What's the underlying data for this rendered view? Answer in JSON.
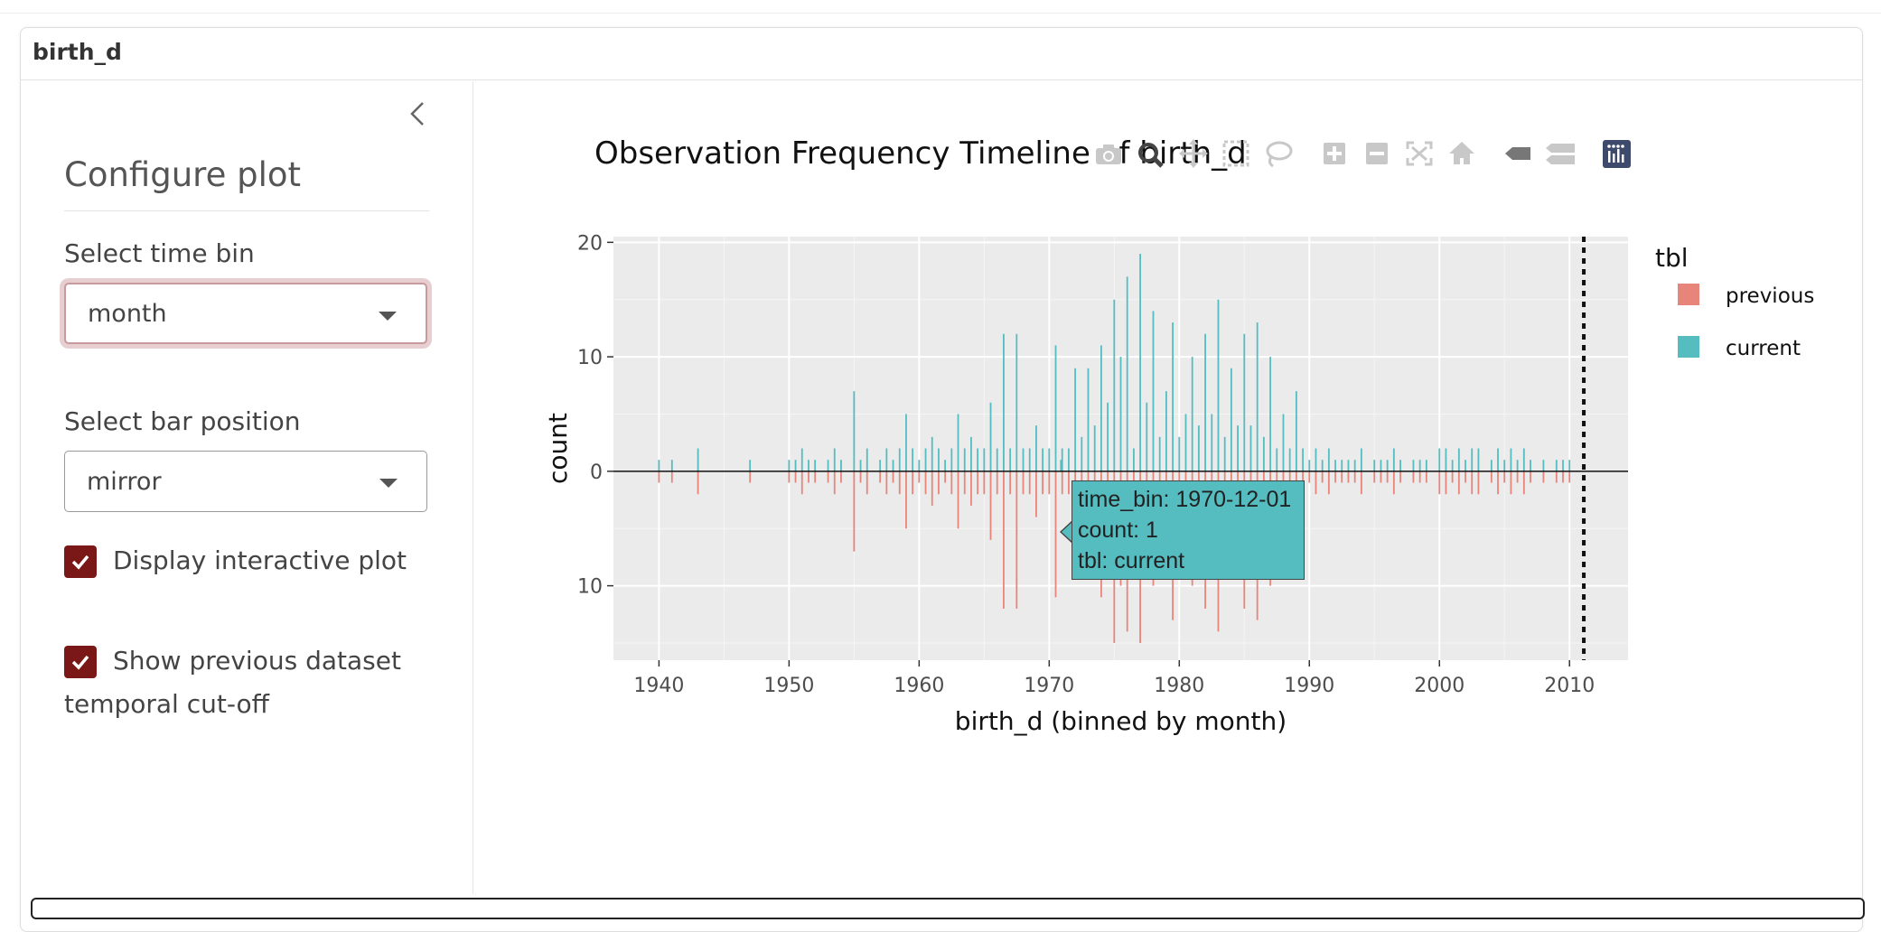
{
  "panel": {
    "title": "birth_d"
  },
  "sidebar": {
    "title": "Configure plot",
    "collapse_icon": "chevron-left-icon",
    "time_bin": {
      "label": "Select time bin",
      "value": "month"
    },
    "bar_position": {
      "label": "Select bar position",
      "value": "mirror"
    },
    "interactive": {
      "label": "Display interactive plot",
      "checked": true
    },
    "cutoff": {
      "label_line1": "Show previous dataset",
      "label_line2": "temporal cut-off",
      "checked": true
    },
    "accent_color": "#7a1717"
  },
  "modebar": {
    "icons": [
      "camera-icon",
      "zoom-icon",
      "pan-icon",
      "box-select-icon",
      "lasso-select-icon",
      "zoom-in-icon",
      "zoom-out-icon",
      "autoscale-icon",
      "reset-axes-icon",
      "spike-lines-icon",
      "compare-hover-icon",
      "plotly-logo-icon"
    ]
  },
  "tooltip": {
    "line1": "time_bin: 1970-12-01",
    "line2": "count:  1",
    "line3": "tbl: current"
  },
  "chart_data": {
    "type": "bar",
    "title": "Observation Frequency Timeline of birth_d",
    "xlabel": "birth_d (binned by month)",
    "ylabel": "count",
    "xlim": [
      1936.5,
      2014.5
    ],
    "ylim": [
      -16.5,
      20.5
    ],
    "x_ticks": [
      "1940",
      "1950",
      "1960",
      "1970",
      "1980",
      "1990",
      "2000",
      "2010"
    ],
    "y_ticks": [
      {
        "value": 20,
        "label": "20"
      },
      {
        "value": 10,
        "label": "10"
      },
      {
        "value": 0,
        "label": "0"
      },
      {
        "value": -10,
        "label": "10"
      }
    ],
    "cutoff_x": 2011.1,
    "legend": {
      "title": "tbl",
      "placement": "right"
    },
    "series": [
      {
        "name": "current",
        "color": "#55bcc0",
        "direction": "up",
        "points": [
          [
            1940,
            1
          ],
          [
            1941,
            1
          ],
          [
            1943,
            2
          ],
          [
            1947,
            1
          ],
          [
            1950,
            1
          ],
          [
            1950.5,
            1
          ],
          [
            1951,
            2
          ],
          [
            1951.5,
            1
          ],
          [
            1952,
            1
          ],
          [
            1953,
            1
          ],
          [
            1953.5,
            2
          ],
          [
            1954,
            1
          ],
          [
            1955,
            7
          ],
          [
            1955.5,
            1
          ],
          [
            1956,
            2
          ],
          [
            1957,
            1
          ],
          [
            1957.5,
            2
          ],
          [
            1958,
            1
          ],
          [
            1958.5,
            2
          ],
          [
            1959,
            5
          ],
          [
            1959.5,
            2
          ],
          [
            1960,
            1
          ],
          [
            1960.5,
            2
          ],
          [
            1961,
            3
          ],
          [
            1961.5,
            2
          ],
          [
            1962,
            1
          ],
          [
            1962.5,
            2
          ],
          [
            1963,
            5
          ],
          [
            1963.5,
            2
          ],
          [
            1964,
            3
          ],
          [
            1964.5,
            2
          ],
          [
            1965,
            2
          ],
          [
            1965.5,
            6
          ],
          [
            1966,
            2
          ],
          [
            1966.5,
            12
          ],
          [
            1967,
            2
          ],
          [
            1967.5,
            12
          ],
          [
            1968,
            2
          ],
          [
            1968.5,
            2
          ],
          [
            1969,
            4
          ],
          [
            1969.5,
            2
          ],
          [
            1970,
            2
          ],
          [
            1970.5,
            11
          ],
          [
            1970.9,
            1
          ],
          [
            1971,
            2
          ],
          [
            1971.5,
            2
          ],
          [
            1972,
            9
          ],
          [
            1972.5,
            3
          ],
          [
            1973,
            9
          ],
          [
            1973.5,
            4
          ],
          [
            1974,
            11
          ],
          [
            1974.5,
            6
          ],
          [
            1975,
            15
          ],
          [
            1975.5,
            10
          ],
          [
            1976,
            17
          ],
          [
            1976.5,
            2
          ],
          [
            1977,
            19
          ],
          [
            1977.5,
            6
          ],
          [
            1978,
            14
          ],
          [
            1978.5,
            3
          ],
          [
            1979,
            7
          ],
          [
            1979.5,
            13
          ],
          [
            1980,
            3
          ],
          [
            1980.5,
            5
          ],
          [
            1981,
            10
          ],
          [
            1981.5,
            4
          ],
          [
            1982,
            12
          ],
          [
            1982.5,
            5
          ],
          [
            1983,
            15
          ],
          [
            1983.5,
            3
          ],
          [
            1984,
            9
          ],
          [
            1984.5,
            4
          ],
          [
            1985,
            12
          ],
          [
            1985.5,
            4
          ],
          [
            1986,
            13
          ],
          [
            1986.5,
            3
          ],
          [
            1987,
            10
          ],
          [
            1987.5,
            2
          ],
          [
            1988,
            5
          ],
          [
            1988.5,
            2
          ],
          [
            1989,
            7
          ],
          [
            1989.5,
            2
          ],
          [
            1990,
            1
          ],
          [
            1990.5,
            2
          ],
          [
            1991,
            1
          ],
          [
            1991.5,
            2
          ],
          [
            1992,
            1
          ],
          [
            1992.5,
            1
          ],
          [
            1993,
            1
          ],
          [
            1993.5,
            1
          ],
          [
            1994,
            2
          ],
          [
            1995,
            1
          ],
          [
            1995.5,
            1
          ],
          [
            1996,
            1
          ],
          [
            1996.5,
            2
          ],
          [
            1997,
            1
          ],
          [
            1998,
            1
          ],
          [
            1998.5,
            1
          ],
          [
            1999,
            1
          ],
          [
            2000,
            2
          ],
          [
            2000.5,
            2
          ],
          [
            2001,
            1
          ],
          [
            2001.5,
            2
          ],
          [
            2002,
            1
          ],
          [
            2002.5,
            2
          ],
          [
            2003,
            2
          ],
          [
            2004,
            1
          ],
          [
            2004.5,
            2
          ],
          [
            2005,
            1
          ],
          [
            2005.5,
            2
          ],
          [
            2006,
            1
          ],
          [
            2006.5,
            2
          ],
          [
            2007,
            1
          ],
          [
            2008,
            1
          ],
          [
            2009,
            1
          ],
          [
            2009.5,
            1
          ],
          [
            2010,
            1
          ]
        ]
      },
      {
        "name": "previous",
        "color": "#e8857b",
        "direction": "down",
        "points": [
          [
            1940,
            1
          ],
          [
            1941,
            1
          ],
          [
            1943,
            2
          ],
          [
            1947,
            1
          ],
          [
            1950,
            1
          ],
          [
            1950.5,
            1
          ],
          [
            1951,
            2
          ],
          [
            1951.5,
            1
          ],
          [
            1952,
            1
          ],
          [
            1953,
            1
          ],
          [
            1953.5,
            2
          ],
          [
            1954,
            1
          ],
          [
            1955,
            7
          ],
          [
            1955.5,
            1
          ],
          [
            1956,
            2
          ],
          [
            1957,
            1
          ],
          [
            1957.5,
            2
          ],
          [
            1958,
            1
          ],
          [
            1958.5,
            2
          ],
          [
            1959,
            5
          ],
          [
            1959.5,
            2
          ],
          [
            1960,
            1
          ],
          [
            1960.5,
            2
          ],
          [
            1961,
            3
          ],
          [
            1961.5,
            2
          ],
          [
            1962,
            1
          ],
          [
            1962.5,
            2
          ],
          [
            1963,
            5
          ],
          [
            1963.5,
            2
          ],
          [
            1964,
            3
          ],
          [
            1964.5,
            2
          ],
          [
            1965,
            2
          ],
          [
            1965.5,
            6
          ],
          [
            1966,
            2
          ],
          [
            1966.5,
            12
          ],
          [
            1967,
            2
          ],
          [
            1967.5,
            12
          ],
          [
            1968,
            2
          ],
          [
            1968.5,
            2
          ],
          [
            1969,
            4
          ],
          [
            1969.5,
            2
          ],
          [
            1970,
            2
          ],
          [
            1970.5,
            11
          ],
          [
            1971,
            2
          ],
          [
            1971.5,
            2
          ],
          [
            1972,
            9
          ],
          [
            1972.5,
            3
          ],
          [
            1973,
            9
          ],
          [
            1973.5,
            4
          ],
          [
            1974,
            11
          ],
          [
            1974.5,
            6
          ],
          [
            1975,
            15
          ],
          [
            1975.5,
            10
          ],
          [
            1976,
            14
          ],
          [
            1976.5,
            2
          ],
          [
            1977,
            15
          ],
          [
            1977.5,
            6
          ],
          [
            1978,
            10
          ],
          [
            1978.5,
            3
          ],
          [
            1979,
            7
          ],
          [
            1979.5,
            13
          ],
          [
            1980,
            3
          ],
          [
            1980.5,
            5
          ],
          [
            1981,
            10
          ],
          [
            1981.5,
            4
          ],
          [
            1982,
            12
          ],
          [
            1982.5,
            5
          ],
          [
            1983,
            14
          ],
          [
            1983.5,
            3
          ],
          [
            1984,
            9
          ],
          [
            1984.5,
            4
          ],
          [
            1985,
            12
          ],
          [
            1985.5,
            4
          ],
          [
            1986,
            13
          ],
          [
            1986.5,
            3
          ],
          [
            1987,
            10
          ],
          [
            1987.5,
            2
          ],
          [
            1988,
            5
          ],
          [
            1988.5,
            2
          ],
          [
            1989,
            7
          ],
          [
            1989.5,
            2
          ],
          [
            1990,
            1
          ],
          [
            1990.5,
            2
          ],
          [
            1991,
            1
          ],
          [
            1991.5,
            2
          ],
          [
            1992,
            1
          ],
          [
            1992.5,
            1
          ],
          [
            1993,
            1
          ],
          [
            1993.5,
            1
          ],
          [
            1994,
            2
          ],
          [
            1995,
            1
          ],
          [
            1995.5,
            1
          ],
          [
            1996,
            1
          ],
          [
            1996.5,
            2
          ],
          [
            1997,
            1
          ],
          [
            1998,
            1
          ],
          [
            1998.5,
            1
          ],
          [
            1999,
            1
          ],
          [
            2000,
            2
          ],
          [
            2000.5,
            2
          ],
          [
            2001,
            1
          ],
          [
            2001.5,
            2
          ],
          [
            2002,
            1
          ],
          [
            2002.5,
            2
          ],
          [
            2003,
            2
          ],
          [
            2004,
            1
          ],
          [
            2004.5,
            2
          ],
          [
            2005,
            1
          ],
          [
            2005.5,
            2
          ],
          [
            2006,
            1
          ],
          [
            2006.5,
            2
          ],
          [
            2007,
            1
          ],
          [
            2008,
            1
          ],
          [
            2009,
            1
          ],
          [
            2009.5,
            1
          ],
          [
            2010,
            1
          ]
        ]
      }
    ]
  }
}
